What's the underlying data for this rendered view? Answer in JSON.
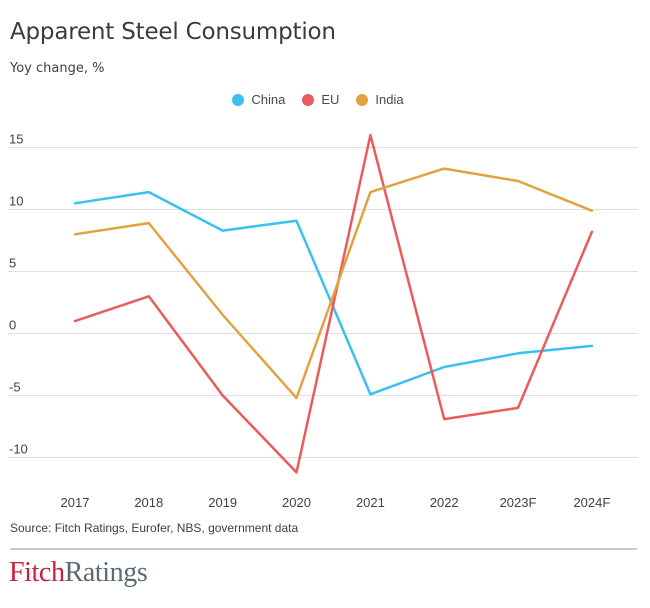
{
  "header": {
    "title": "Apparent Steel Consumption",
    "subtitle": "Yoy change, %"
  },
  "source": "Source: Fitch Ratings, Eurofer, NBS, government data",
  "logo": {
    "part1": "Fitch",
    "part2": "Ratings"
  },
  "colors": {
    "china": "#3bc0f2",
    "eu": "#e95c5a",
    "india": "#e2a33e",
    "grid": "#dfdfdf",
    "axis_text": "#424242",
    "title_text": "#3b3b3b",
    "divider": "#c9c9c9",
    "logo_fitch": "#c9203f",
    "logo_ratings": "#5b6a75"
  },
  "chart_data": {
    "type": "line",
    "title": "Apparent Steel Consumption",
    "subtitle": "Yoy change, %",
    "categories": [
      "2017",
      "2018",
      "2019",
      "2020",
      "2021",
      "2022",
      "2023F",
      "2024F"
    ],
    "series": [
      {
        "name": "China",
        "color": "#3bc0f2",
        "values": [
          10.5,
          11.4,
          8.3,
          9.1,
          -4.9,
          -2.7,
          -1.6,
          -1.0
        ]
      },
      {
        "name": "EU",
        "color": "#e95c5a",
        "values": [
          1.0,
          3.0,
          -5.0,
          -11.2,
          16.0,
          -6.9,
          -6.0,
          8.2
        ]
      },
      {
        "name": "India",
        "color": "#e2a33e",
        "values": [
          8.0,
          8.9,
          1.5,
          -5.2,
          11.4,
          13.3,
          12.3,
          9.9
        ]
      }
    ],
    "yticks": [
      15,
      10,
      5,
      0,
      -5,
      -10
    ],
    "ylim": [
      -11.5,
      16.5
    ],
    "grid": true,
    "legend_position": "top-center",
    "xlabel": "",
    "ylabel": "Yoy change, %"
  }
}
